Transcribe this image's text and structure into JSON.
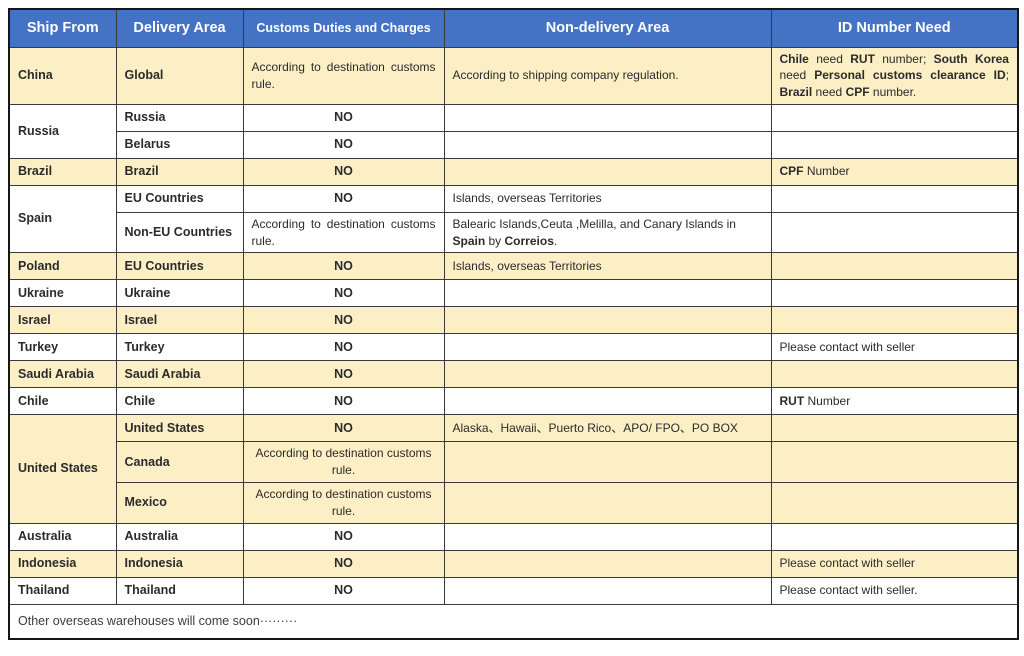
{
  "colors": {
    "header_bg": "#4472C4",
    "header_text": "#FFFFFF",
    "shade": "#FCEFC5",
    "border_inner": "#3A3A3A",
    "border_outer": "#161616",
    "text": "#2B2B2B"
  },
  "table": {
    "headers": [
      {
        "key": "ship-from",
        "label": "Ship From"
      },
      {
        "key": "delivery-area",
        "label": "Delivery Area"
      },
      {
        "key": "customs-duties",
        "label": "Customs Duties and Charges",
        "small": true
      },
      {
        "key": "non-delivery-area",
        "label": "Non-delivery Area"
      },
      {
        "key": "id-number-need",
        "label": "ID Number Need"
      }
    ],
    "rows": [
      {
        "name": "row-china",
        "shade": true,
        "cells": [
          {
            "t": "China",
            "b": true
          },
          {
            "t": "Global",
            "b": true
          },
          {
            "t": "According to destination customs rule.",
            "align": "justify"
          },
          {
            "t": "According to shipping company regulation."
          },
          {
            "align": "justify",
            "segs": [
              {
                "t": "Chile",
                "b": true
              },
              {
                "t": " need "
              },
              {
                "t": "RUT",
                "b": true
              },
              {
                "t": " number; "
              },
              {
                "t": "South Korea",
                "b": true
              },
              {
                "t": " need "
              },
              {
                "t": "Personal customs clearance ID",
                "b": true
              },
              {
                "t": "; "
              },
              {
                "t": "Brazil",
                "b": true
              },
              {
                "t": " need "
              },
              {
                "t": "CPF",
                "b": true
              },
              {
                "t": " number."
              }
            ]
          }
        ]
      },
      {
        "name": "row-russia",
        "shade": false,
        "cells": [
          {
            "t": "Russia",
            "b": true,
            "r": 2
          },
          {
            "t": "Russia",
            "b": true
          },
          {
            "t": "NO",
            "b": true,
            "align": "center"
          },
          {
            "t": ""
          },
          {
            "t": ""
          }
        ]
      },
      {
        "name": "row-russia-belarus",
        "shade": false,
        "cells": [
          {
            "t": "Belarus",
            "b": true
          },
          {
            "t": "NO",
            "b": true,
            "align": "center"
          },
          {
            "t": ""
          },
          {
            "t": ""
          }
        ]
      },
      {
        "name": "row-brazil",
        "shade": true,
        "cells": [
          {
            "t": "Brazil",
            "b": true
          },
          {
            "t": "Brazil",
            "b": true
          },
          {
            "t": "NO",
            "b": true,
            "align": "center"
          },
          {
            "t": ""
          },
          {
            "segs": [
              {
                "t": "CPF",
                "b": true
              },
              {
                "t": " Number"
              }
            ]
          }
        ]
      },
      {
        "name": "row-spain-eu",
        "shade": false,
        "cells": [
          {
            "t": "Spain",
            "b": true,
            "r": 2
          },
          {
            "t": "EU Countries",
            "b": true
          },
          {
            "t": "NO",
            "b": true,
            "align": "center"
          },
          {
            "t": "Islands, overseas Territories"
          },
          {
            "t": ""
          }
        ]
      },
      {
        "name": "row-spain-non-eu",
        "shade": false,
        "cells": [
          {
            "t": "Non-EU Countries",
            "b": true
          },
          {
            "t": "According to destination customs rule.",
            "align": "justify"
          },
          {
            "segs": [
              {
                "t": "Balearic Islands,Ceuta ,Melilla, and Canary Islands in "
              },
              {
                "t": "Spain",
                "b": true
              },
              {
                "t": " by "
              },
              {
                "t": "Correios",
                "b": true
              },
              {
                "t": "."
              }
            ]
          },
          {
            "t": ""
          }
        ]
      },
      {
        "name": "row-poland",
        "shade": true,
        "cells": [
          {
            "t": "Poland",
            "b": true
          },
          {
            "t": "EU Countries",
            "b": true
          },
          {
            "t": "NO",
            "b": true,
            "align": "center"
          },
          {
            "t": "Islands, overseas Territories"
          },
          {
            "t": ""
          }
        ]
      },
      {
        "name": "row-ukraine",
        "shade": false,
        "cells": [
          {
            "t": "Ukraine",
            "b": true
          },
          {
            "t": "Ukraine",
            "b": true
          },
          {
            "t": "NO",
            "b": true,
            "align": "center"
          },
          {
            "t": ""
          },
          {
            "t": ""
          }
        ]
      },
      {
        "name": "row-israel",
        "shade": true,
        "cells": [
          {
            "t": "Israel",
            "b": true
          },
          {
            "t": "Israel",
            "b": true
          },
          {
            "t": "NO",
            "b": true,
            "align": "center"
          },
          {
            "t": ""
          },
          {
            "t": ""
          }
        ]
      },
      {
        "name": "row-turkey",
        "shade": false,
        "cells": [
          {
            "t": "Turkey",
            "b": true
          },
          {
            "t": "Turkey",
            "b": true
          },
          {
            "t": "NO",
            "b": true,
            "align": "center"
          },
          {
            "t": ""
          },
          {
            "t": "Please contact with seller"
          }
        ]
      },
      {
        "name": "row-saudi-arabia",
        "shade": true,
        "cells": [
          {
            "t": "Saudi Arabia",
            "b": true
          },
          {
            "t": "Saudi Arabia",
            "b": true
          },
          {
            "t": "NO",
            "b": true,
            "align": "center"
          },
          {
            "t": ""
          },
          {
            "t": ""
          }
        ]
      },
      {
        "name": "row-chile",
        "shade": false,
        "cells": [
          {
            "t": "Chile",
            "b": true
          },
          {
            "t": "Chile",
            "b": true
          },
          {
            "t": "NO",
            "b": true,
            "align": "center"
          },
          {
            "t": ""
          },
          {
            "segs": [
              {
                "t": "RUT",
                "b": true
              },
              {
                "t": " Number"
              }
            ]
          }
        ]
      },
      {
        "name": "row-us-us",
        "shade": true,
        "cells": [
          {
            "t": "United States",
            "b": true,
            "r": 3
          },
          {
            "t": "United States",
            "b": true
          },
          {
            "t": "NO",
            "b": true,
            "align": "center"
          },
          {
            "t": "Alaska、Hawaii、Puerto Rico、APO/ FPO、PO BOX"
          },
          {
            "t": ""
          }
        ]
      },
      {
        "name": "row-us-canada",
        "shade": true,
        "cells": [
          {
            "t": "Canada",
            "b": true
          },
          {
            "t": "According to destination customs rule.",
            "align": "center"
          },
          {
            "t": ""
          },
          {
            "t": ""
          }
        ]
      },
      {
        "name": "row-us-mexico",
        "shade": true,
        "cells": [
          {
            "t": "Mexico",
            "b": true
          },
          {
            "t": "According to destination customs rule.",
            "align": "center"
          },
          {
            "t": ""
          },
          {
            "t": ""
          }
        ]
      },
      {
        "name": "row-australia",
        "shade": false,
        "cells": [
          {
            "t": "Australia",
            "b": true
          },
          {
            "t": "Australia",
            "b": true
          },
          {
            "t": "NO",
            "b": true,
            "align": "center"
          },
          {
            "t": ""
          },
          {
            "t": ""
          }
        ]
      },
      {
        "name": "row-indonesia",
        "shade": true,
        "cells": [
          {
            "t": "Indonesia",
            "b": true
          },
          {
            "t": "Indonesia",
            "b": true
          },
          {
            "t": "NO",
            "b": true,
            "align": "center"
          },
          {
            "t": ""
          },
          {
            "t": "Please contact with seller"
          }
        ]
      },
      {
        "name": "row-thailand",
        "shade": false,
        "cells": [
          {
            "t": "Thailand",
            "b": true
          },
          {
            "t": "Thailand",
            "b": true
          },
          {
            "t": "NO",
            "b": true,
            "align": "center"
          },
          {
            "t": ""
          },
          {
            "t": "Please contact with seller."
          }
        ]
      },
      {
        "name": "row-footer",
        "shade": false,
        "cells": [
          {
            "t": "Other overseas warehouses will come soon·········",
            "c": 5,
            "cls": "footer",
            "name": "footer-note"
          }
        ]
      }
    ]
  }
}
